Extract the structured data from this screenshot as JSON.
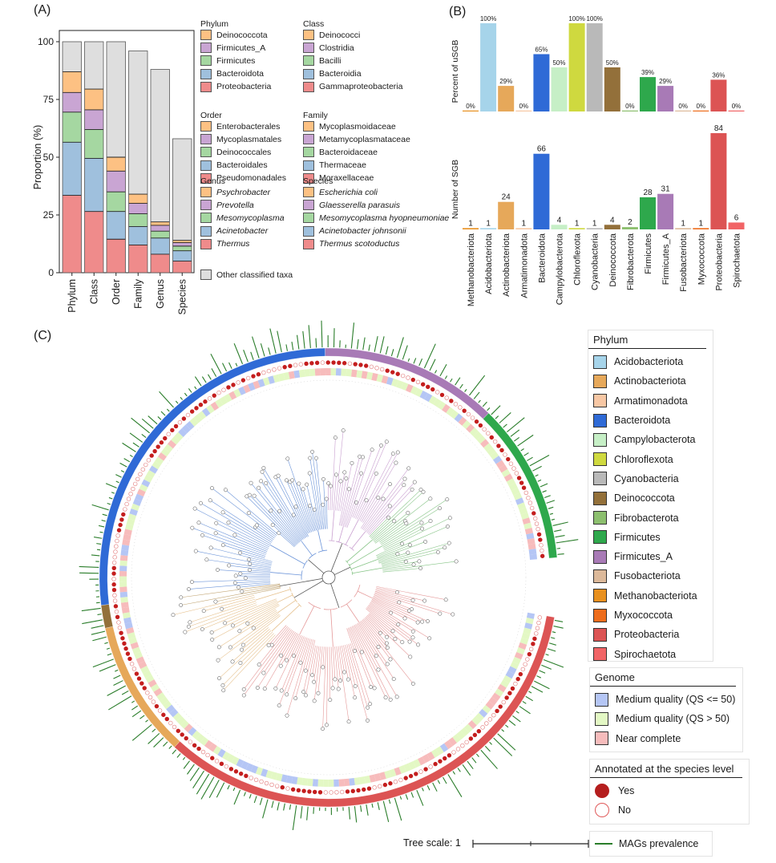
{
  "panels": {
    "a": "(A)",
    "b": "(B)",
    "c": "(C)"
  },
  "chart_data": [
    {
      "type": "bar",
      "stacked": true,
      "title": "(A)",
      "ylabel": "Proportion (%)",
      "ylim": [
        0,
        100
      ],
      "yticks": [
        0,
        25,
        50,
        75,
        100
      ],
      "categories": [
        "Phylum",
        "Class",
        "Order",
        "Family",
        "Genus",
        "Species"
      ],
      "totals": [
        100,
        100,
        100,
        96,
        88,
        58
      ],
      "segments": [
        [
          {
            "name": "Proteobacteria",
            "value": 33.5,
            "color": "#ef8b8b"
          },
          {
            "name": "Bacteroidota",
            "value": 23,
            "color": "#9fc0dd"
          },
          {
            "name": "Firmicutes",
            "value": 13,
            "color": "#a5d7a1"
          },
          {
            "name": "Firmicutes_A",
            "value": 8.5,
            "color": "#c9a5d3"
          },
          {
            "name": "Deinococcota",
            "value": 9,
            "color": "#fdc183"
          },
          {
            "name": "Other classified taxa",
            "value": 13,
            "color": "#dedede"
          }
        ],
        [
          {
            "name": "Gammaproteobacteria",
            "value": 26.5,
            "color": "#ef8b8b"
          },
          {
            "name": "Bacteroidia",
            "value": 23,
            "color": "#9fc0dd"
          },
          {
            "name": "Bacilli",
            "value": 12.5,
            "color": "#a5d7a1"
          },
          {
            "name": "Clostridia",
            "value": 8.5,
            "color": "#c9a5d3"
          },
          {
            "name": "Deinococci",
            "value": 9,
            "color": "#fdc183"
          },
          {
            "name": "Other classified taxa",
            "value": 20.5,
            "color": "#dedede"
          }
        ],
        [
          {
            "name": "Pseudomonadales",
            "value": 14.5,
            "color": "#ef8b8b"
          },
          {
            "name": "Bacteroidales",
            "value": 12,
            "color": "#9fc0dd"
          },
          {
            "name": "Deinococcales",
            "value": 8.5,
            "color": "#a5d7a1"
          },
          {
            "name": "Mycoplasmatales",
            "value": 9,
            "color": "#c9a5d3"
          },
          {
            "name": "Enterobacterales",
            "value": 6,
            "color": "#fdc183"
          },
          {
            "name": "Other classified taxa",
            "value": 50,
            "color": "#dedede"
          }
        ],
        [
          {
            "name": "Moraxellaceae",
            "value": 12,
            "color": "#ef8b8b"
          },
          {
            "name": "Thermaceae",
            "value": 8,
            "color": "#9fc0dd"
          },
          {
            "name": "Bacteroidaceae",
            "value": 5.5,
            "color": "#a5d7a1"
          },
          {
            "name": "Metamycoplasmataceae",
            "value": 4.5,
            "color": "#c9a5d3"
          },
          {
            "name": "Mycoplasmoidaceae",
            "value": 4,
            "color": "#fdc183"
          },
          {
            "name": "Other classified taxa",
            "value": 62,
            "color": "#dedede"
          }
        ],
        [
          {
            "name": "Thermus",
            "value": 8,
            "color": "#ef8b8b"
          },
          {
            "name": "Acinetobacter",
            "value": 7,
            "color": "#9fc0dd"
          },
          {
            "name": "Mesomycoplasma",
            "value": 3,
            "color": "#a5d7a1"
          },
          {
            "name": "Prevotella",
            "value": 2.5,
            "color": "#c9a5d3"
          },
          {
            "name": "Psychrobacter",
            "value": 1.5,
            "color": "#fdc183"
          },
          {
            "name": "Other classified taxa",
            "value": 66,
            "color": "#dedede"
          }
        ],
        [
          {
            "name": "Thermus scotoductus",
            "value": 5,
            "color": "#ef8b8b"
          },
          {
            "name": "Acinetobacter johnsonii",
            "value": 4.5,
            "color": "#9fc0dd"
          },
          {
            "name": "Mesomycoplasma hyopneumoniae",
            "value": 2,
            "color": "#a5d7a1"
          },
          {
            "name": "Glaesserella parasuis",
            "value": 1.5,
            "color": "#c9a5d3"
          },
          {
            "name": "Escherichia coli",
            "value": 1,
            "color": "#fdc183"
          },
          {
            "name": "Other classified taxa",
            "value": 44,
            "color": "#dedede"
          }
        ]
      ],
      "legend": [
        {
          "title": "Phylum",
          "italic": false,
          "items": [
            {
              "label": "Deinococcota",
              "color": "#fdc183"
            },
            {
              "label": "Firmicutes_A",
              "color": "#c9a5d3"
            },
            {
              "label": "Firmicutes",
              "color": "#a5d7a1"
            },
            {
              "label": "Bacteroidota",
              "color": "#9fc0dd"
            },
            {
              "label": "Proteobacteria",
              "color": "#ef8b8b"
            }
          ]
        },
        {
          "title": "Class",
          "italic": false,
          "items": [
            {
              "label": "Deinococci",
              "color": "#fdc183"
            },
            {
              "label": "Clostridia",
              "color": "#c9a5d3"
            },
            {
              "label": "Bacilli",
              "color": "#a5d7a1"
            },
            {
              "label": "Bacteroidia",
              "color": "#9fc0dd"
            },
            {
              "label": "Gammaproteobacteria",
              "color": "#ef8b8b"
            }
          ]
        },
        {
          "title": "Order",
          "italic": false,
          "items": [
            {
              "label": "Enterobacterales",
              "color": "#fdc183"
            },
            {
              "label": "Mycoplasmatales",
              "color": "#c9a5d3"
            },
            {
              "label": "Deinococcales",
              "color": "#a5d7a1"
            },
            {
              "label": "Bacteroidales",
              "color": "#9fc0dd"
            },
            {
              "label": "Pseudomonadales",
              "color": "#ef8b8b"
            }
          ]
        },
        {
          "title": "Family",
          "italic": false,
          "items": [
            {
              "label": "Mycoplasmoidaceae",
              "color": "#fdc183"
            },
            {
              "label": "Metamycoplasmataceae",
              "color": "#c9a5d3"
            },
            {
              "label": "Bacteroidaceae",
              "color": "#a5d7a1"
            },
            {
              "label": "Thermaceae",
              "color": "#9fc0dd"
            },
            {
              "label": "Moraxellaceae",
              "color": "#ef8b8b"
            }
          ]
        },
        {
          "title": "Genus",
          "italic": true,
          "items": [
            {
              "label": "Psychrobacter",
              "color": "#fdc183"
            },
            {
              "label": "Prevotella",
              "color": "#c9a5d3"
            },
            {
              "label": "Mesomycoplasma",
              "color": "#a5d7a1"
            },
            {
              "label": "Acinetobacter",
              "color": "#9fc0dd"
            },
            {
              "label": "Thermus",
              "color": "#ef8b8b"
            }
          ]
        },
        {
          "title": "Species",
          "italic": true,
          "items": [
            {
              "label": "Escherichia coli",
              "color": "#fdc183"
            },
            {
              "label": "Glaesserella parasuis",
              "color": "#c9a5d3"
            },
            {
              "label": "Mesomycoplasma hyopneumoniae",
              "color": "#a5d7a1"
            },
            {
              "label": "Acinetobacter johnsonii",
              "color": "#9fc0dd"
            },
            {
              "label": "Thermus scotoductus",
              "color": "#ef8b8b"
            }
          ]
        }
      ],
      "other_label": "Other classified taxa",
      "other_color": "#dedede"
    },
    {
      "type": "bar",
      "title": "(B)",
      "categories": [
        "Methanobacteriota",
        "Acidobacteriota",
        "Actinobacteriota",
        "Armatimonadota",
        "Bacteroidota",
        "Campylobacterota",
        "Chloroflexota",
        "Cyanobacteria",
        "Deinococcota",
        "Fibrobacterota",
        "Firmicutes",
        "Firmicutes_A",
        "Fusobacteriota",
        "Myxococcota",
        "Proteobacteria",
        "Spirochaetota"
      ],
      "colors": [
        "#e8901e",
        "#a6d4ea",
        "#e6a85a",
        "#f7c7a4",
        "#2f6ad6",
        "#c6efc6",
        "#cfd93f",
        "#b9b9b9",
        "#93703a",
        "#8cbf6e",
        "#2ea84c",
        "#a87ab6",
        "#dcb99a",
        "#ee6c1b",
        "#dc5454",
        "#f16466"
      ],
      "series": [
        {
          "name": "Percent of uSGB",
          "ylabel": "Percent of uSGB",
          "values": [
            0,
            100,
            29,
            0,
            65,
            50,
            100,
            100,
            50,
            0,
            39,
            29,
            0,
            0,
            36,
            0
          ],
          "labels": [
            "0%",
            "100%",
            "29%",
            "0%",
            "65%",
            "50%",
            "100%",
            "100%",
            "50%",
            "0%",
            "39%",
            "29%",
            "0%",
            "0%",
            "36%",
            "0%"
          ]
        },
        {
          "name": "Number of SGB",
          "ylabel": "Number of SGB",
          "values": [
            1,
            1,
            24,
            1,
            66,
            4,
            1,
            1,
            4,
            2,
            28,
            31,
            1,
            1,
            84,
            6
          ],
          "labels": [
            "1",
            "1",
            "24",
            "1",
            "66",
            "4",
            "1",
            "1",
            "4",
            "2",
            "28",
            "31",
            "1",
            "1",
            "84",
            "6"
          ]
        }
      ]
    },
    {
      "type": "circular-phylogenetic-tree",
      "title": "(C)",
      "tree_scale_label": "Tree scale: 1",
      "phylum_sectors": [
        {
          "name": "Proteobacteria",
          "count": 84
        },
        {
          "name": "Actinobacteriota",
          "count": 24
        },
        {
          "name": "Deinococcota",
          "count": 4
        },
        {
          "name": "Bacteroidota",
          "count": 66
        },
        {
          "name": "Firmicutes_A",
          "count": 31
        },
        {
          "name": "Firmicutes",
          "count": 28
        }
      ],
      "legend": {
        "phylum": {
          "title": "Phylum",
          "items": [
            {
              "label": "Acidobacteriota",
              "color": "#a6d4ea"
            },
            {
              "label": "Actinobacteriota",
              "color": "#e6a85a"
            },
            {
              "label": "Armatimonadota",
              "color": "#f7c7a4"
            },
            {
              "label": "Bacteroidota",
              "color": "#2f6ad6"
            },
            {
              "label": "Campylobacterota",
              "color": "#c6efc6"
            },
            {
              "label": "Chloroflexota",
              "color": "#cfd93f"
            },
            {
              "label": "Cyanobacteria",
              "color": "#b9b9b9"
            },
            {
              "label": "Deinococcota",
              "color": "#93703a"
            },
            {
              "label": "Fibrobacterota",
              "color": "#8cbf6e"
            },
            {
              "label": "Firmicutes",
              "color": "#2ea84c"
            },
            {
              "label": "Firmicutes_A",
              "color": "#a87ab6"
            },
            {
              "label": "Fusobacteriota",
              "color": "#dcb99a"
            },
            {
              "label": "Methanobacteriota",
              "color": "#e8901e"
            },
            {
              "label": "Myxococcota",
              "color": "#ee6c1b"
            },
            {
              "label": "Proteobacteria",
              "color": "#dc5454"
            },
            {
              "label": "Spirochaetota",
              "color": "#f16466"
            }
          ]
        },
        "genome": {
          "title": "Genome",
          "items": [
            {
              "label": "Medium quality (QS <= 50)",
              "color": "#b5c6f5"
            },
            {
              "label": "Medium quality (QS > 50)",
              "color": "#e3f8c4"
            },
            {
              "label": "Near complete",
              "color": "#f7bcbc"
            }
          ]
        },
        "annotated": {
          "title": "Annotated at the species level",
          "items": [
            {
              "label": "Yes",
              "color": "#b51e1e"
            },
            {
              "label": "No",
              "color": "#e05a5a"
            }
          ]
        },
        "prevalence": {
          "label": "MAGs prevalence",
          "color": "#2a7d2a"
        }
      }
    }
  ]
}
